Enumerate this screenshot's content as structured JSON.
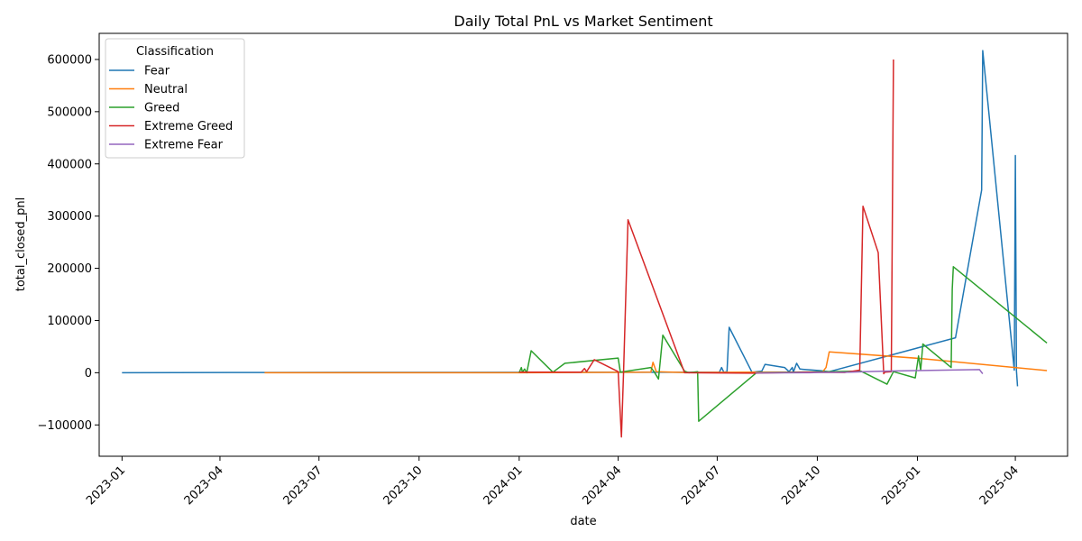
{
  "chart_data": {
    "type": "line",
    "title": "Daily Total PnL vs Market Sentiment",
    "xlabel": "date",
    "ylabel": "total_closed_pnl",
    "x_type": "date",
    "xlim": [
      "2022-12-11",
      "2025-05-19"
    ],
    "ylim": [
      -160000,
      650000
    ],
    "x_ticks": [
      "2023-01",
      "2023-04",
      "2023-07",
      "2023-10",
      "2024-01",
      "2024-04",
      "2024-07",
      "2024-10",
      "2025-01",
      "2025-04"
    ],
    "y_ticks": [
      -100000,
      0,
      100000,
      200000,
      300000,
      400000,
      500000,
      600000
    ],
    "y_tick_labels": [
      "−100000",
      "0",
      "100000",
      "200000",
      "300000",
      "400000",
      "500000",
      "600000"
    ],
    "legend": {
      "title": "Classification",
      "position": "upper-left"
    },
    "grid": false,
    "series": [
      {
        "name": "Fear",
        "color": "#1f77b4",
        "x": [
          "2023-01-01",
          "2023-05-12",
          "2024-07-03",
          "2024-07-05",
          "2024-07-07",
          "2024-07-10",
          "2024-07-12",
          "2024-08-02",
          "2024-08-11",
          "2024-08-14",
          "2024-09-01",
          "2024-09-05",
          "2024-09-08",
          "2024-09-09",
          "2024-09-12",
          "2024-09-15",
          "2024-10-03",
          "2024-10-12",
          "2025-02-05",
          "2025-03-01",
          "2025-03-02",
          "2025-03-31",
          "2025-04-01",
          "2025-04-02",
          "2025-04-03"
        ],
        "y": [
          0,
          500,
          1000,
          10000,
          1000,
          2000,
          87000,
          1000,
          3000,
          16000,
          10000,
          2000,
          10000,
          1000,
          18000,
          7000,
          4000,
          2000,
          67000,
          350000,
          617000,
          5000,
          416000,
          4000,
          -26000
        ]
      },
      {
        "name": "Neutral",
        "color": "#ff7f0e",
        "x": [
          "2023-05-12",
          "2024-01-01",
          "2024-05-01",
          "2024-05-03",
          "2024-05-06",
          "2024-06-01",
          "2024-08-01",
          "2024-10-01",
          "2024-10-06",
          "2024-10-09",
          "2024-10-12",
          "2025-01-05",
          "2025-04-30"
        ],
        "y": [
          0,
          0,
          1000,
          20000,
          2000,
          500,
          1000,
          1000,
          2000,
          10000,
          40000,
          27000,
          4000
        ]
      },
      {
        "name": "Greed",
        "color": "#2ca02c",
        "x": [
          "2024-01-01",
          "2024-01-03",
          "2024-01-04",
          "2024-01-06",
          "2024-01-08",
          "2024-01-12",
          "2024-02-01",
          "2024-02-12",
          "2024-04-01",
          "2024-04-03",
          "2024-05-01",
          "2024-05-04",
          "2024-05-08",
          "2024-05-12",
          "2024-06-01",
          "2024-06-05",
          "2024-06-13",
          "2024-06-14",
          "2024-08-06",
          "2024-11-10",
          "2024-12-04",
          "2024-12-10",
          "2024-12-30",
          "2025-01-02",
          "2025-01-04",
          "2025-01-06",
          "2025-02-01",
          "2025-02-02",
          "2025-02-03",
          "2025-04-30"
        ],
        "y": [
          0,
          10000,
          1000,
          7000,
          0,
          42000,
          1000,
          18000,
          28000,
          1000,
          10000,
          2000,
          -12000,
          72000,
          3000,
          0,
          2000,
          -93000,
          0,
          3000,
          -22000,
          2000,
          -10000,
          32000,
          5000,
          55000,
          10000,
          160000,
          203000,
          57000
        ]
      },
      {
        "name": "Extreme Greed",
        "color": "#d62728",
        "x": [
          "2024-01-01",
          "2024-02-27",
          "2024-03-01",
          "2024-03-03",
          "2024-03-10",
          "2024-04-01",
          "2024-04-04",
          "2024-04-06",
          "2024-04-10",
          "2024-06-01",
          "2024-08-04",
          "2024-09-21",
          "2024-10-26",
          "2024-11-09",
          "2024-11-12",
          "2024-11-26",
          "2024-12-01",
          "2024-12-02",
          "2024-12-08",
          "2024-12-10"
        ],
        "y": [
          1000,
          1000,
          8000,
          2000,
          25000,
          2000,
          -123000,
          3000,
          293000,
          0,
          -1000,
          1000,
          500,
          5000,
          319000,
          230000,
          -2000,
          1000,
          2000,
          600000
        ]
      },
      {
        "name": "Extreme Fear",
        "color": "#9467bd",
        "x": [
          "2024-08-05",
          "2024-09-24",
          "2024-10-01",
          "2024-11-01",
          "2024-11-12",
          "2024-12-02",
          "2025-01-01",
          "2025-02-27",
          "2025-03-02"
        ],
        "y": [
          -500,
          0,
          500,
          1000,
          2000,
          3000,
          4000,
          6000,
          -2000
        ]
      }
    ]
  }
}
